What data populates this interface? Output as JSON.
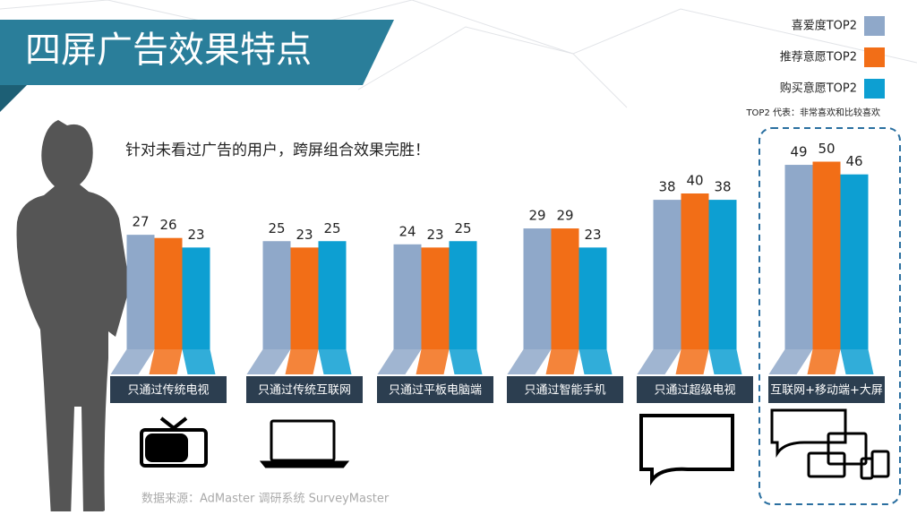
{
  "chart_data": {
    "type": "bar",
    "title": "四屏广告效果特点",
    "subtitle": "针对未看过广告的用户，跨屏组合效果完胜！",
    "categories": [
      "只通过传统电视",
      "只通过传统互联网",
      "只通过平板电脑端",
      "只通过智能手机",
      "只通过超级电视",
      "互联网+移动端+大屏"
    ],
    "series": [
      {
        "name": "喜爱度TOP2",
        "color": "#8fa8c9",
        "values": [
          27,
          25,
          24,
          29,
          38,
          49
        ]
      },
      {
        "name": "推荐意愿TOP2",
        "color": "#f26e17",
        "values": [
          26,
          23,
          23,
          29,
          40,
          50
        ]
      },
      {
        "name": "购买意愿TOP2",
        "color": "#0d9fd2",
        "values": [
          23,
          25,
          25,
          23,
          38,
          46
        ]
      }
    ],
    "legend_note": "TOP2 代表：非常喜欢和比较喜欢",
    "source": "数据来源：AdMaster 调研系统 SurveyMaster"
  }
}
